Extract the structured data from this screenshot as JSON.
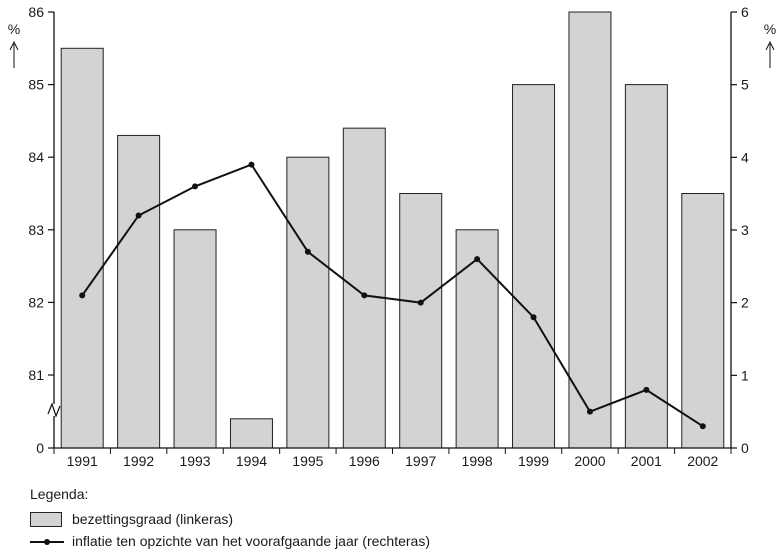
{
  "chart_data": {
    "type": "bar",
    "categories": [
      "1991",
      "1992",
      "1993",
      "1994",
      "1995",
      "1996",
      "1997",
      "1998",
      "1999",
      "2000",
      "2001",
      "2002"
    ],
    "series": [
      {
        "name": "bezettingsgraad (linkeras)",
        "type": "bar",
        "axis": "left",
        "values": [
          85.5,
          84.3,
          83.0,
          80.4,
          84.0,
          84.4,
          83.5,
          83.0,
          85.0,
          86.0,
          85.0,
          83.5
        ]
      },
      {
        "name": "inflatie ten opzichte van het voorafgaande jaar (rechteras)",
        "type": "line",
        "axis": "right",
        "values": [
          2.1,
          3.2,
          3.6,
          3.9,
          2.7,
          2.1,
          2.0,
          2.6,
          1.8,
          0.5,
          0.8,
          0.3
        ]
      }
    ],
    "left_axis": {
      "unit": "%",
      "ticks": [
        "0",
        "81",
        "82",
        "83",
        "84",
        "85",
        "86"
      ],
      "broken": true,
      "ylim": [
        80,
        86
      ]
    },
    "right_axis": {
      "unit": "%",
      "ticks": [
        "0",
        "1",
        "2",
        "3",
        "4",
        "5",
        "6"
      ],
      "ylim": [
        0,
        6
      ]
    },
    "legend": {
      "title": "Legenda:",
      "placement": "bottom-left"
    },
    "colors": {
      "bar_fill": "#d3d3d3",
      "bar_stroke": "#222222",
      "line": "#111111"
    }
  }
}
